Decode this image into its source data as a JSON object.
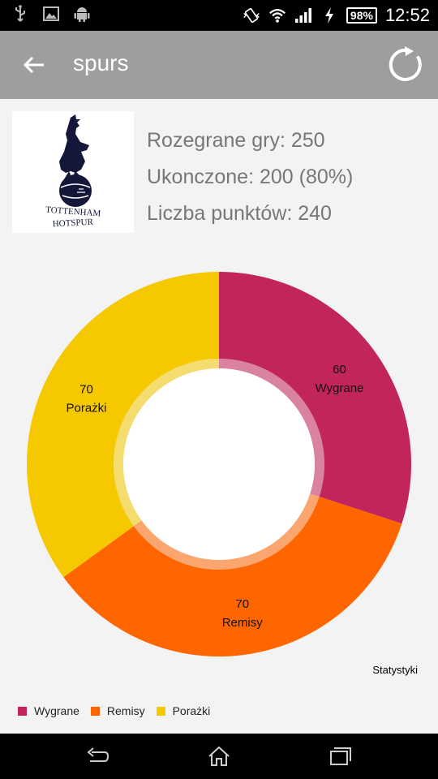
{
  "status_bar": {
    "battery_percent": "98%",
    "time": "12:52",
    "icons": [
      "usb-icon",
      "image-icon",
      "android-icon",
      "vibrate-icon",
      "wifi-icon",
      "signal-icon",
      "charging-icon",
      "battery-icon"
    ]
  },
  "app_bar": {
    "title": "spurs",
    "back_icon": "arrow-left-icon",
    "refresh_icon": "refresh-icon"
  },
  "team": {
    "logo_text_line1": "TOTTENHAM",
    "logo_text_line2": "HOTSPUR",
    "games_played": "Rozegrane gry: 250",
    "completed": "Ukonczone: 200 (80%)",
    "points": "Liczba punktów: 240"
  },
  "chart_data": {
    "type": "pie",
    "categories": [
      "Wygrane",
      "Remisy",
      "Porażki"
    ],
    "values": [
      60,
      70,
      70
    ],
    "colors": [
      "#c2255c",
      "#ff6600",
      "#f5c800"
    ],
    "description": "Statystyki",
    "legend_position": "bottom-left"
  },
  "nav_bar": {
    "icons": [
      "back-icon",
      "home-icon",
      "recent-apps-icon"
    ]
  }
}
